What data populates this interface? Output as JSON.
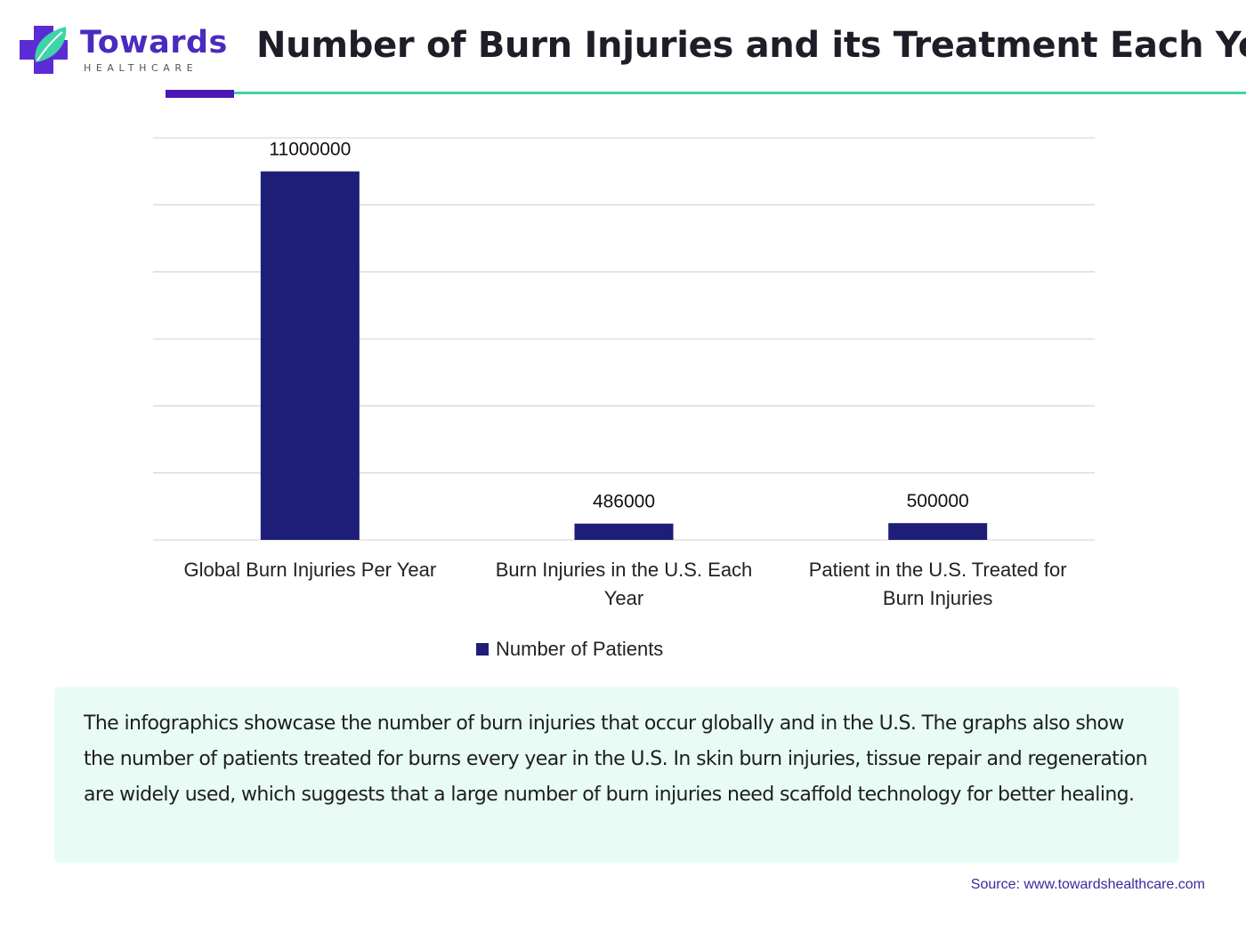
{
  "brand": {
    "name": "Towards",
    "subtitle": "HEALTHCARE",
    "logo_icon": "medical-cross-leaf-icon",
    "colors": {
      "purple": "#4b2bbf",
      "teal": "#3fd3a8"
    }
  },
  "title": "Number of Burn Injuries and its Treatment Each Year",
  "chart_data": {
    "type": "bar",
    "categories": [
      [
        "Global Burn Injuries Per Year"
      ],
      [
        "Burn Injuries in the U.S. Each",
        "Year"
      ],
      [
        "Patient in the U.S. Treated for",
        "Burn Injuries"
      ]
    ],
    "series": [
      {
        "name": "Number of Patients",
        "values": [
          11000000,
          486000,
          500000
        ],
        "data_labels": [
          "11000000",
          "486000",
          "500000"
        ],
        "color": "#1e1e78"
      }
    ],
    "ylim": [
      0,
      12000000
    ],
    "yticks": [
      0,
      2000000,
      4000000,
      6000000,
      8000000,
      10000000,
      12000000
    ],
    "ytick_labels_visible": false,
    "grid": true,
    "gridline_color": "#d9d9d9",
    "legend_position": "bottom"
  },
  "legend": {
    "label": "Number of Patients"
  },
  "description": "The infographics showcase the number of burn injuries that occur globally and in the U.S. The graphs also show the number of patients treated for burns every year in the U.S. In skin burn injuries, tissue repair and regeneration are widely used, which suggests that a large number of burn injuries need scaffold technology for better healing.",
  "source": "Source: www.towardshealthcare.com"
}
